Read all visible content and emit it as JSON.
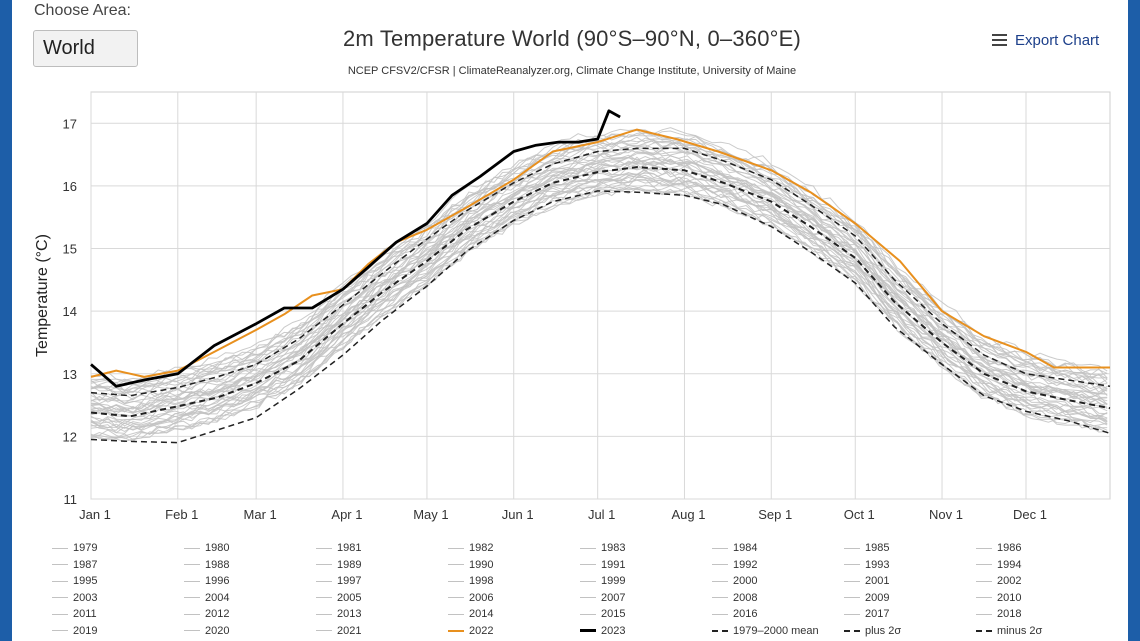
{
  "choose_area": {
    "label": "Choose Area:",
    "selected": "World"
  },
  "header": {
    "title": "2m Temperature World (90°S–90°N, 0–360°E)",
    "subtitle": "NCEP CFSV2/CFSR | ClimateReanalyzer.org, Climate Change Institute, University of Maine",
    "export_label": "Export Chart",
    "export_icon": "hamburger-menu-icon"
  },
  "colors": {
    "background_years": "#c2c2c2",
    "year_2022": "#e8901e",
    "year_2023": "#000000",
    "stats_lines": "#222222",
    "grid": "#d9d9d9"
  },
  "chart_data": {
    "type": "line",
    "title": "2m Temperature World (90°S–90°N, 0–360°E)",
    "ylabel": "Temperature (°C)",
    "xlabel": "",
    "ylim": [
      11,
      17.5
    ],
    "xlim": [
      1,
      365
    ],
    "grid": true,
    "y_ticks": [
      "11",
      "12",
      "13",
      "14",
      "15",
      "16",
      "17"
    ],
    "x_tick_labels": [
      "Jan 1",
      "Feb 1",
      "Mar 1",
      "Apr 1",
      "May 1",
      "Jun 1",
      "Jul 1",
      "Aug 1",
      "Sep 1",
      "Oct 1",
      "Nov 1",
      "Dec 1"
    ],
    "x_tick_days": [
      1,
      32,
      60,
      91,
      121,
      152,
      182,
      213,
      244,
      274,
      305,
      335
    ],
    "legend_placement": "bottom",
    "series": [
      {
        "name": "1979–2000 mean",
        "style": "dashed",
        "x": [
          1,
          15,
          32,
          46,
          60,
          75,
          91,
          105,
          121,
          135,
          152,
          166,
          182,
          196,
          213,
          227,
          244,
          258,
          274,
          288,
          305,
          320,
          335,
          350,
          365
        ],
        "values": [
          12.38,
          12.32,
          12.48,
          12.62,
          12.85,
          13.2,
          13.8,
          14.3,
          14.8,
          15.3,
          15.75,
          16.05,
          16.22,
          16.3,
          16.25,
          16.05,
          15.75,
          15.35,
          14.85,
          14.15,
          13.5,
          13.0,
          12.72,
          12.58,
          12.45
        ]
      },
      {
        "name": "plus 2σ",
        "style": "dashed",
        "x": [
          1,
          15,
          32,
          46,
          60,
          75,
          91,
          105,
          121,
          135,
          152,
          166,
          182,
          196,
          213,
          227,
          244,
          258,
          274,
          288,
          305,
          320,
          335,
          350,
          365
        ],
        "values": [
          12.7,
          12.65,
          12.78,
          12.95,
          13.15,
          13.55,
          14.1,
          14.6,
          15.15,
          15.6,
          16.05,
          16.35,
          16.55,
          16.6,
          16.6,
          16.4,
          16.1,
          15.7,
          15.2,
          14.5,
          13.8,
          13.3,
          13.0,
          12.9,
          12.8
        ]
      },
      {
        "name": "minus 2σ",
        "style": "dashed",
        "x": [
          1,
          15,
          32,
          46,
          60,
          75,
          91,
          105,
          121,
          135,
          152,
          166,
          182,
          196,
          213,
          227,
          244,
          258,
          274,
          288,
          305,
          320,
          335,
          350,
          365
        ],
        "values": [
          11.95,
          11.92,
          11.9,
          12.1,
          12.3,
          12.75,
          13.3,
          13.85,
          14.4,
          14.95,
          15.45,
          15.75,
          15.92,
          15.9,
          15.85,
          15.7,
          15.35,
          14.95,
          14.45,
          13.75,
          13.15,
          12.65,
          12.4,
          12.25,
          12.05
        ]
      },
      {
        "name": "2022",
        "x": [
          1,
          10,
          20,
          32,
          45,
          60,
          70,
          80,
          91,
          100,
          110,
          121,
          135,
          152,
          166,
          182,
          196,
          210,
          225,
          244,
          258,
          274,
          290,
          305,
          320,
          335,
          345,
          365
        ],
        "values": [
          12.95,
          13.05,
          12.95,
          13.05,
          13.35,
          13.7,
          13.95,
          14.25,
          14.35,
          14.75,
          15.1,
          15.3,
          15.65,
          16.1,
          16.55,
          16.7,
          16.9,
          16.75,
          16.55,
          16.25,
          15.9,
          15.4,
          14.8,
          14.0,
          13.6,
          13.35,
          13.1,
          13.1
        ]
      },
      {
        "name": "2023",
        "x": [
          1,
          10,
          20,
          32,
          45,
          60,
          70,
          80,
          91,
          100,
          110,
          121,
          130,
          140,
          152,
          160,
          168,
          175,
          182,
          186,
          190
        ],
        "values": [
          13.15,
          12.8,
          12.9,
          13.0,
          13.45,
          13.8,
          14.05,
          14.05,
          14.35,
          14.7,
          15.1,
          15.4,
          15.85,
          16.15,
          16.55,
          16.65,
          16.7,
          16.7,
          16.75,
          17.2,
          17.1
        ]
      }
    ]
  },
  "legend": {
    "items": [
      "1979",
      "1980",
      "1981",
      "1982",
      "1983",
      "1984",
      "1985",
      "1986",
      "1987",
      "1988",
      "1989",
      "1990",
      "1991",
      "1992",
      "1993",
      "1994",
      "1995",
      "1996",
      "1997",
      "1998",
      "1999",
      "2000",
      "2001",
      "2002",
      "2003",
      "2004",
      "2005",
      "2006",
      "2007",
      "2008",
      "2009",
      "2010",
      "2011",
      "2012",
      "2013",
      "2014",
      "2015",
      "2016",
      "2017",
      "2018",
      "2019",
      "2020",
      "2021",
      "2022",
      "2023",
      "1979–2000 mean",
      "plus 2σ",
      "minus 2σ"
    ]
  }
}
